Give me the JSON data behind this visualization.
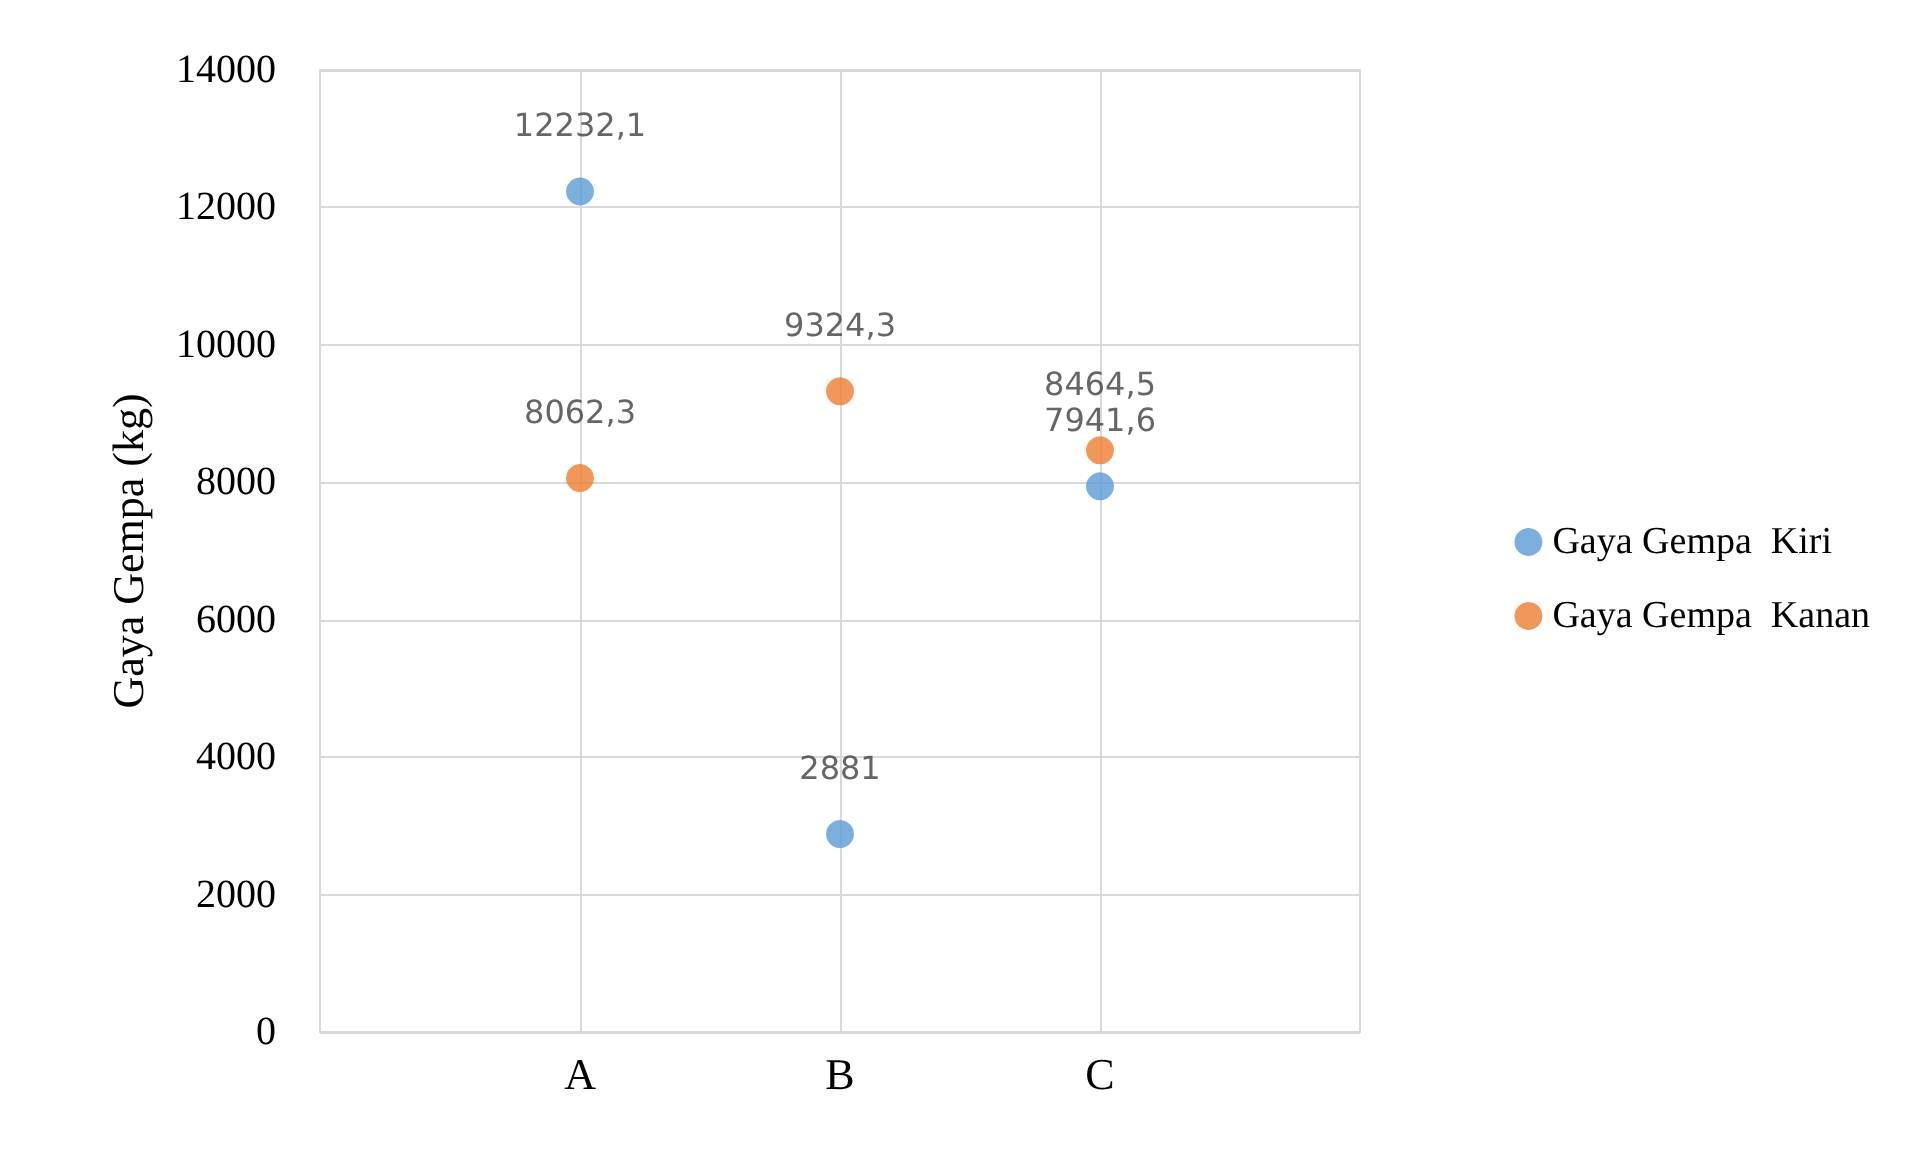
{
  "chart_data": {
    "type": "scatter",
    "ylabel": "Gaya Gempa (kg)",
    "categories": [
      "A",
      "B",
      "C"
    ],
    "series": [
      {
        "name": "Gaya Gempa  Kiri",
        "color": "#5b9bd5",
        "values": [
          12232.1,
          2881,
          7941.6
        ],
        "value_labels": [
          "12232,1",
          "2881",
          "7941,6"
        ]
      },
      {
        "name": "Gaya Gempa  Kanan",
        "color": "#ed7d31",
        "values": [
          8062.3,
          9324.3,
          8464.5
        ],
        "value_labels": [
          "8062,3",
          "9324,3",
          "8464,5"
        ]
      }
    ],
    "ylim": [
      0,
      14000
    ],
    "yticks": [
      0,
      2000,
      4000,
      6000,
      8000,
      10000,
      12000,
      14000
    ],
    "grid": true,
    "legend": "right",
    "marker": "circle"
  }
}
